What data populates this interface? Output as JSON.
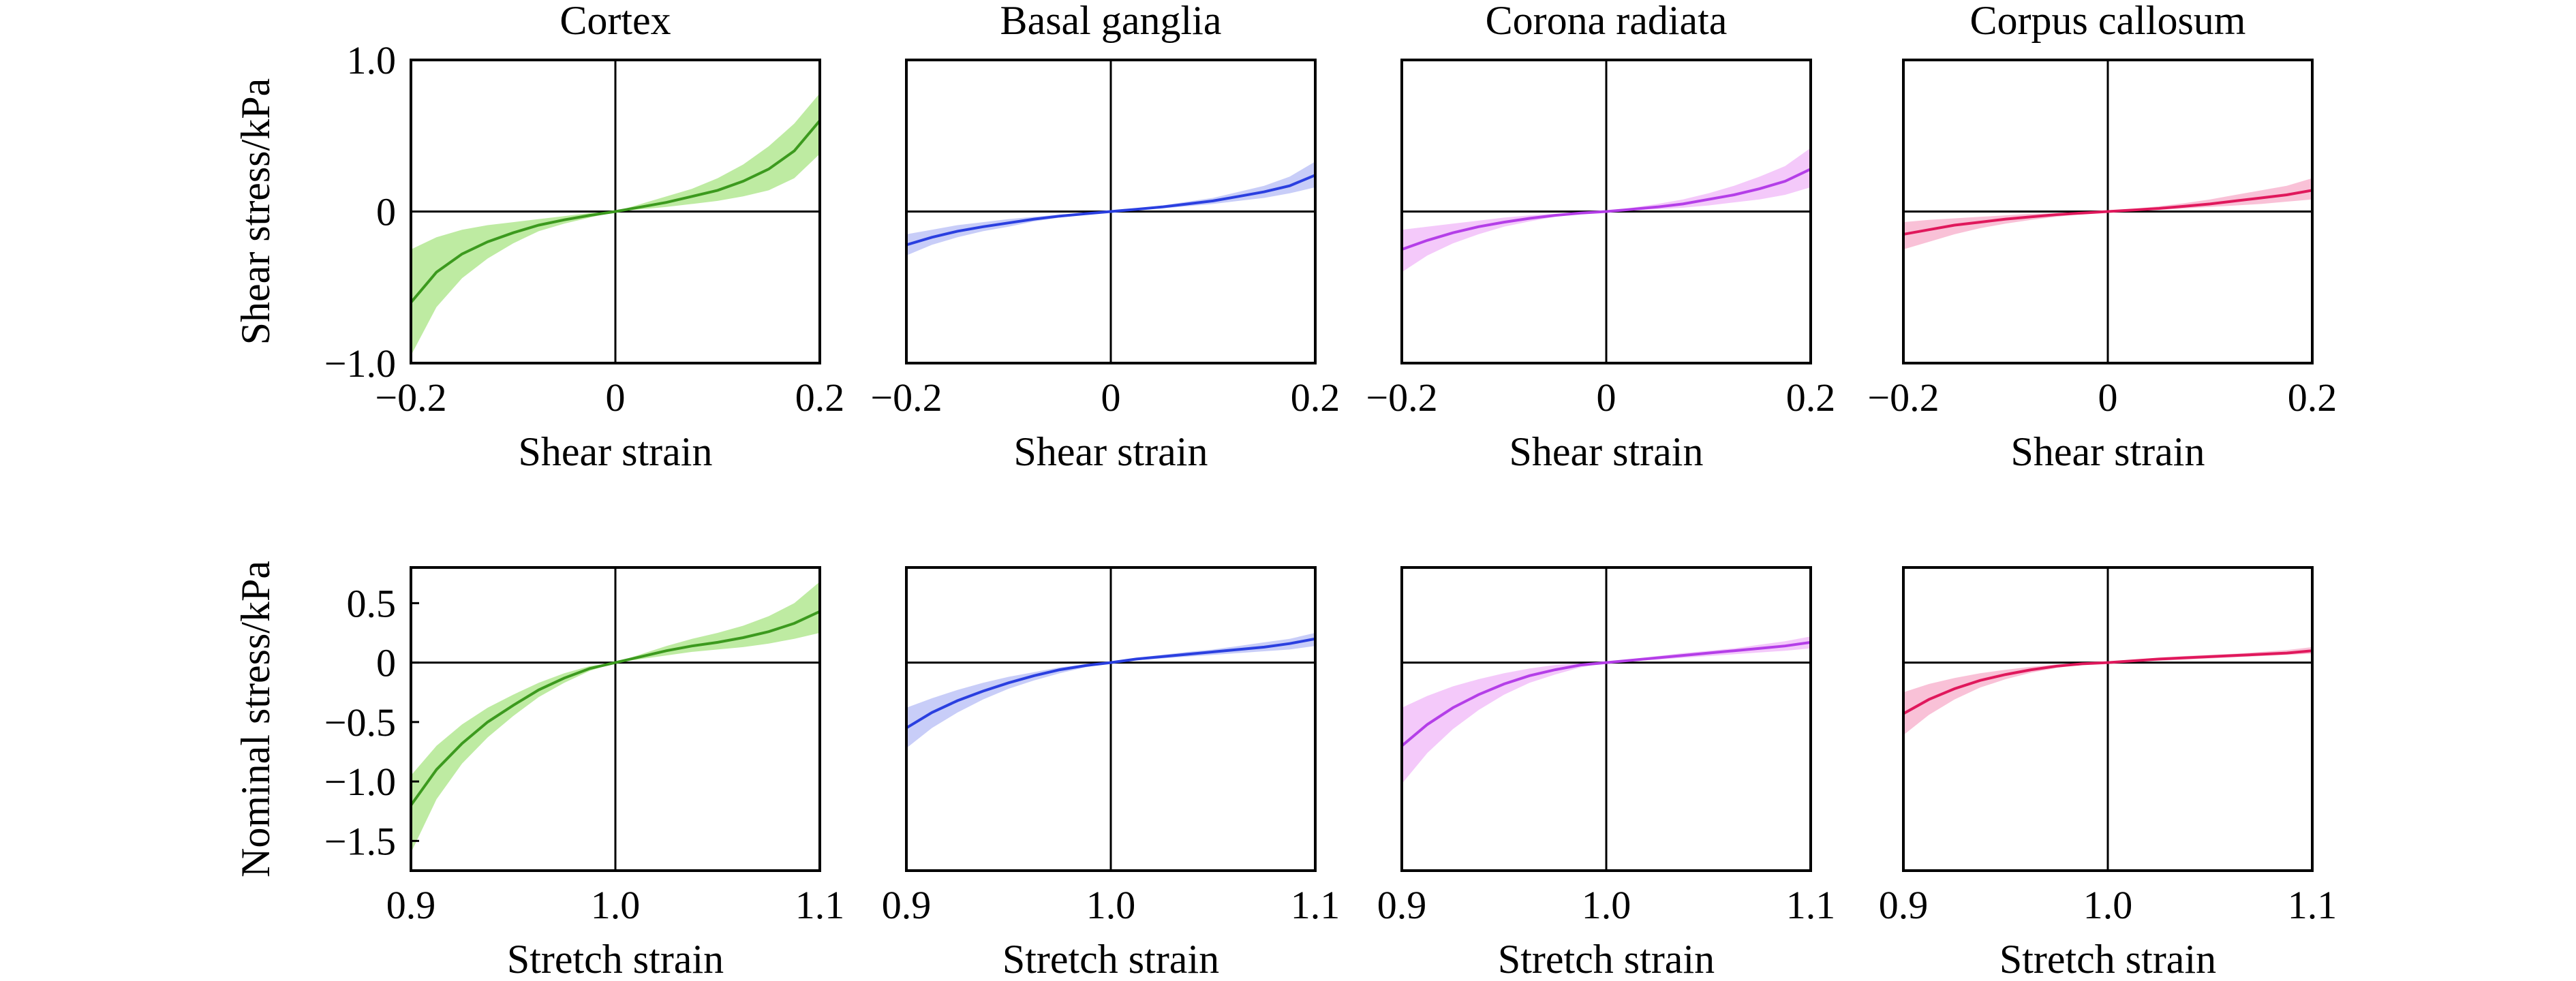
{
  "chart_data": [
    {
      "type": "line",
      "row": "shear",
      "title": "Cortex",
      "xlabel": "Shear strain",
      "ylabel": "Shear stress/kPa",
      "xlim": [
        -0.2,
        0.2
      ],
      "ylim": [
        -1.0,
        1.0
      ],
      "xticks": [
        -0.2,
        0,
        0.2
      ],
      "xtick_labels": [
        "−0.2",
        "0",
        "0.2"
      ],
      "yticks": [
        -1.0,
        0,
        1.0
      ],
      "ytick_labels": [
        "−1.0",
        "0",
        "1.0"
      ],
      "color": "#3c9a1e",
      "band_color": "#a3e27a",
      "x": [
        -0.2,
        -0.175,
        -0.15,
        -0.125,
        -0.1,
        -0.075,
        -0.05,
        -0.025,
        0,
        0.025,
        0.05,
        0.075,
        0.1,
        0.125,
        0.15,
        0.175,
        0.2
      ],
      "y": [
        -0.6,
        -0.4,
        -0.28,
        -0.2,
        -0.14,
        -0.09,
        -0.055,
        -0.025,
        0,
        0.03,
        0.06,
        0.1,
        0.14,
        0.2,
        0.28,
        0.4,
        0.6
      ],
      "y_upper": [
        -0.25,
        -0.17,
        -0.12,
        -0.09,
        -0.07,
        -0.05,
        -0.03,
        -0.01,
        0,
        0.05,
        0.1,
        0.15,
        0.22,
        0.31,
        0.43,
        0.58,
        0.78
      ],
      "y_lower": [
        -0.95,
        -0.63,
        -0.44,
        -0.31,
        -0.21,
        -0.13,
        -0.08,
        -0.04,
        0,
        0.015,
        0.03,
        0.05,
        0.07,
        0.1,
        0.14,
        0.22,
        0.38
      ]
    },
    {
      "type": "line",
      "row": "shear",
      "title": "Basal ganglia",
      "xlabel": "Shear strain",
      "ylabel": "",
      "xlim": [
        -0.2,
        0.2
      ],
      "ylim": [
        -1.0,
        1.0
      ],
      "xticks": [
        -0.2,
        0,
        0.2
      ],
      "xtick_labels": [
        "−0.2",
        "0",
        "0.2"
      ],
      "yticks": [],
      "ytick_labels": [],
      "color": "#2a3fe0",
      "band_color": "#b0b8f5",
      "x": [
        -0.2,
        -0.175,
        -0.15,
        -0.125,
        -0.1,
        -0.075,
        -0.05,
        -0.025,
        0,
        0.025,
        0.05,
        0.075,
        0.1,
        0.125,
        0.15,
        0.175,
        0.2
      ],
      "y": [
        -0.22,
        -0.17,
        -0.13,
        -0.1,
        -0.075,
        -0.05,
        -0.03,
        -0.015,
        0,
        0.015,
        0.03,
        0.05,
        0.07,
        0.1,
        0.13,
        0.17,
        0.24
      ],
      "y_upper": [
        -0.15,
        -0.12,
        -0.09,
        -0.07,
        -0.05,
        -0.035,
        -0.02,
        -0.01,
        0,
        0.02,
        0.04,
        0.065,
        0.09,
        0.13,
        0.17,
        0.23,
        0.33
      ],
      "y_lower": [
        -0.29,
        -0.22,
        -0.17,
        -0.13,
        -0.1,
        -0.065,
        -0.04,
        -0.02,
        0,
        0.01,
        0.02,
        0.035,
        0.05,
        0.07,
        0.09,
        0.12,
        0.16
      ]
    },
    {
      "type": "line",
      "row": "shear",
      "title": "Corona radiata",
      "xlabel": "Shear strain",
      "ylabel": "",
      "xlim": [
        -0.2,
        0.2
      ],
      "ylim": [
        -1.0,
        1.0
      ],
      "xticks": [
        -0.2,
        0,
        0.2
      ],
      "xtick_labels": [
        "−0.2",
        "0",
        "0.2"
      ],
      "yticks": [],
      "ytick_labels": [],
      "color": "#b43ee8",
      "band_color": "#f0b2f8",
      "x": [
        -0.2,
        -0.175,
        -0.15,
        -0.125,
        -0.1,
        -0.075,
        -0.05,
        -0.025,
        0,
        0.025,
        0.05,
        0.075,
        0.1,
        0.125,
        0.15,
        0.175,
        0.2
      ],
      "y": [
        -0.25,
        -0.19,
        -0.14,
        -0.1,
        -0.07,
        -0.045,
        -0.025,
        -0.01,
        0,
        0.015,
        0.03,
        0.05,
        0.08,
        0.11,
        0.15,
        0.2,
        0.28
      ],
      "y_upper": [
        -0.12,
        -0.1,
        -0.08,
        -0.06,
        -0.04,
        -0.025,
        -0.015,
        -0.005,
        0,
        0.025,
        0.05,
        0.08,
        0.12,
        0.17,
        0.23,
        0.3,
        0.42
      ],
      "y_lower": [
        -0.4,
        -0.29,
        -0.21,
        -0.15,
        -0.1,
        -0.065,
        -0.035,
        -0.015,
        0,
        0.008,
        0.015,
        0.025,
        0.04,
        0.06,
        0.08,
        0.11,
        0.16
      ]
    },
    {
      "type": "line",
      "row": "shear",
      "title": "Corpus callosum",
      "xlabel": "Shear strain",
      "ylabel": "",
      "xlim": [
        -0.2,
        0.2
      ],
      "ylim": [
        -1.0,
        1.0
      ],
      "xticks": [
        -0.2,
        0,
        0.2
      ],
      "xtick_labels": [
        "−0.2",
        "0",
        "0.2"
      ],
      "yticks": [],
      "ytick_labels": [],
      "color": "#e0185c",
      "band_color": "#f7a6c6",
      "x": [
        -0.2,
        -0.175,
        -0.15,
        -0.125,
        -0.1,
        -0.075,
        -0.05,
        -0.025,
        0,
        0.025,
        0.05,
        0.075,
        0.1,
        0.125,
        0.15,
        0.175,
        0.2
      ],
      "y": [
        -0.15,
        -0.12,
        -0.09,
        -0.07,
        -0.05,
        -0.035,
        -0.02,
        -0.01,
        0,
        0.01,
        0.02,
        0.035,
        0.05,
        0.07,
        0.09,
        0.11,
        0.14
      ],
      "y_upper": [
        -0.07,
        -0.055,
        -0.045,
        -0.035,
        -0.025,
        -0.015,
        -0.01,
        -0.005,
        0,
        0.018,
        0.035,
        0.055,
        0.08,
        0.11,
        0.14,
        0.17,
        0.22
      ],
      "y_lower": [
        -0.25,
        -0.2,
        -0.15,
        -0.11,
        -0.08,
        -0.055,
        -0.035,
        -0.015,
        0,
        0.005,
        0.01,
        0.02,
        0.03,
        0.04,
        0.05,
        0.065,
        0.08
      ]
    },
    {
      "type": "line",
      "row": "stretch",
      "title": "",
      "xlabel": "Stretch strain",
      "ylabel": "Nominal stress/kPa",
      "xlim": [
        0.9,
        1.1
      ],
      "ylim": [
        -1.75,
        0.8
      ],
      "xticks": [
        0.9,
        1.0,
        1.1
      ],
      "xtick_labels": [
        "0.9",
        "1.0",
        "1.1"
      ],
      "yticks": [
        0.5,
        0,
        -0.5,
        -1.0,
        -1.5
      ],
      "ytick_labels": [
        "0.5",
        "0",
        "−0.5",
        "−1.0",
        "−1.5"
      ],
      "color": "#3c9a1e",
      "band_color": "#a3e27a",
      "x": [
        0.9,
        0.9125,
        0.925,
        0.9375,
        0.95,
        0.9625,
        0.975,
        0.9875,
        1.0,
        1.0125,
        1.025,
        1.0375,
        1.05,
        1.0625,
        1.075,
        1.0875,
        1.1
      ],
      "y": [
        -1.2,
        -0.9,
        -0.68,
        -0.5,
        -0.36,
        -0.23,
        -0.13,
        -0.05,
        0,
        0.05,
        0.1,
        0.14,
        0.17,
        0.21,
        0.26,
        0.33,
        0.43
      ],
      "y_upper": [
        -0.95,
        -0.7,
        -0.52,
        -0.38,
        -0.27,
        -0.17,
        -0.09,
        -0.03,
        0,
        0.07,
        0.14,
        0.2,
        0.25,
        0.31,
        0.39,
        0.5,
        0.68
      ],
      "y_lower": [
        -1.6,
        -1.15,
        -0.85,
        -0.63,
        -0.45,
        -0.29,
        -0.17,
        -0.07,
        0,
        0.03,
        0.06,
        0.09,
        0.11,
        0.13,
        0.16,
        0.2,
        0.25
      ]
    },
    {
      "type": "line",
      "row": "stretch",
      "title": "",
      "xlabel": "Stretch strain",
      "ylabel": "",
      "xlim": [
        0.9,
        1.1
      ],
      "ylim": [
        -1.75,
        0.8
      ],
      "xticks": [
        0.9,
        1.0,
        1.1
      ],
      "xtick_labels": [
        "0.9",
        "1.0",
        "1.1"
      ],
      "yticks": [],
      "ytick_labels": [],
      "color": "#2a3fe0",
      "band_color": "#b0b8f5",
      "x": [
        0.9,
        0.9125,
        0.925,
        0.9375,
        0.95,
        0.9625,
        0.975,
        0.9875,
        1.0,
        1.0125,
        1.025,
        1.0375,
        1.05,
        1.0625,
        1.075,
        1.0875,
        1.1
      ],
      "y": [
        -0.55,
        -0.42,
        -0.32,
        -0.24,
        -0.17,
        -0.11,
        -0.06,
        -0.025,
        0,
        0.03,
        0.05,
        0.07,
        0.09,
        0.11,
        0.13,
        0.16,
        0.2
      ],
      "y_upper": [
        -0.38,
        -0.3,
        -0.23,
        -0.17,
        -0.12,
        -0.08,
        -0.04,
        -0.015,
        0,
        0.04,
        0.065,
        0.09,
        0.11,
        0.14,
        0.17,
        0.2,
        0.25
      ],
      "y_lower": [
        -0.72,
        -0.55,
        -0.42,
        -0.31,
        -0.22,
        -0.15,
        -0.09,
        -0.04,
        0,
        0.02,
        0.035,
        0.05,
        0.065,
        0.08,
        0.095,
        0.11,
        0.14
      ]
    },
    {
      "type": "line",
      "row": "stretch",
      "title": "",
      "xlabel": "Stretch strain",
      "ylabel": "",
      "xlim": [
        0.9,
        1.1
      ],
      "ylim": [
        -1.75,
        0.8
      ],
      "xticks": [
        0.9,
        1.0,
        1.1
      ],
      "xtick_labels": [
        "0.9",
        "1.0",
        "1.1"
      ],
      "yticks": [],
      "ytick_labels": [],
      "color": "#b43ee8",
      "band_color": "#f0b2f8",
      "x": [
        0.9,
        0.9125,
        0.925,
        0.9375,
        0.95,
        0.9625,
        0.975,
        0.9875,
        1.0,
        1.0125,
        1.025,
        1.0375,
        1.05,
        1.0625,
        1.075,
        1.0875,
        1.1
      ],
      "y": [
        -0.7,
        -0.52,
        -0.38,
        -0.27,
        -0.18,
        -0.11,
        -0.06,
        -0.02,
        0,
        0.02,
        0.04,
        0.06,
        0.08,
        0.1,
        0.12,
        0.14,
        0.17
      ],
      "y_upper": [
        -0.38,
        -0.28,
        -0.2,
        -0.14,
        -0.09,
        -0.05,
        -0.02,
        -0.005,
        0,
        0.03,
        0.055,
        0.08,
        0.1,
        0.12,
        0.15,
        0.18,
        0.22
      ],
      "y_lower": [
        -1.02,
        -0.76,
        -0.56,
        -0.4,
        -0.27,
        -0.17,
        -0.1,
        -0.04,
        0,
        0.012,
        0.025,
        0.04,
        0.055,
        0.07,
        0.085,
        0.1,
        0.12
      ]
    },
    {
      "type": "line",
      "row": "stretch",
      "title": "",
      "xlabel": "Stretch strain",
      "ylabel": "",
      "xlim": [
        0.9,
        1.1
      ],
      "ylim": [
        -1.75,
        0.8
      ],
      "xticks": [
        0.9,
        1.0,
        1.1
      ],
      "xtick_labels": [
        "0.9",
        "1.0",
        "1.1"
      ],
      "yticks": [],
      "ytick_labels": [],
      "color": "#e0185c",
      "band_color": "#f7a6c6",
      "x": [
        0.9,
        0.9125,
        0.925,
        0.9375,
        0.95,
        0.9625,
        0.975,
        0.9875,
        1.0,
        1.0125,
        1.025,
        1.0375,
        1.05,
        1.0625,
        1.075,
        1.0875,
        1.1
      ],
      "y": [
        -0.43,
        -0.31,
        -0.22,
        -0.15,
        -0.1,
        -0.06,
        -0.03,
        -0.01,
        0,
        0.015,
        0.03,
        0.04,
        0.05,
        0.06,
        0.07,
        0.08,
        0.1
      ],
      "y_upper": [
        -0.25,
        -0.18,
        -0.13,
        -0.09,
        -0.06,
        -0.035,
        -0.015,
        -0.005,
        0,
        0.025,
        0.04,
        0.055,
        0.065,
        0.075,
        0.09,
        0.105,
        0.13
      ],
      "y_lower": [
        -0.61,
        -0.44,
        -0.31,
        -0.21,
        -0.14,
        -0.085,
        -0.045,
        -0.015,
        0,
        0.008,
        0.015,
        0.025,
        0.035,
        0.045,
        0.055,
        0.065,
        0.075
      ]
    }
  ]
}
